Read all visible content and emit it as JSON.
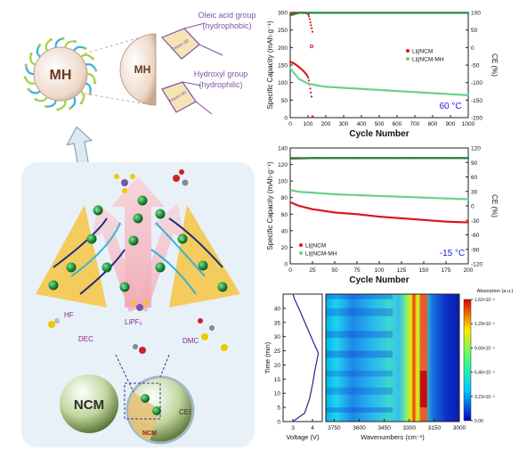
{
  "schematic": {
    "particle_label": "MH",
    "cap_label": "MH",
    "tween_label": "Tween 80",
    "oleic_label": "Oleic acid group",
    "oleic_sub": "(hydrophobic)",
    "hydroxyl_label": "Hydroxyl group",
    "hydroxyl_sub": "(hydrophilic)",
    "hf_label": "HF",
    "lipf6_label": "LiPF₆",
    "dec_label": "DEC",
    "dmc_label": "DMC",
    "ncm_label": "NCM",
    "ncm_small_label": "NCM",
    "cei_label": "CEI",
    "li_label": "Li"
  },
  "colors": {
    "li_ncm": "#d8191c",
    "li_ncm_mh": "#6ccf8a",
    "ce_line": "#1f8a3c",
    "arrow_pink": "#f2a7b3",
    "panel_bg": "#e8f1f8",
    "fan_yellow": "#f4c542",
    "li_ball": "#1e8f3e"
  },
  "chart_data": [
    {
      "type": "scatter",
      "title": "",
      "annotation": "60 °C",
      "xlabel": "Cycle Number",
      "ylabel": "Specific Capacity (mAh·g⁻¹)",
      "y2label": "CE (%)",
      "xlim": [
        0,
        1000
      ],
      "ylim": [
        0,
        300
      ],
      "y2lim": [
        -200,
        100
      ],
      "xticks": [
        0,
        100,
        200,
        300,
        400,
        500,
        600,
        700,
        800,
        900,
        1000
      ],
      "yticks": [
        0,
        50,
        100,
        150,
        200,
        250,
        300
      ],
      "y2ticks": [
        -200,
        -150,
        -100,
        -50,
        0,
        50,
        100
      ],
      "legend": "center-right",
      "series": [
        {
          "name": "Li||NCM",
          "kind": "capacity",
          "color": "#d8191c",
          "x": [
            1,
            5,
            10,
            20,
            30,
            40,
            50,
            60,
            70,
            80,
            90,
            100,
            105,
            110,
            115,
            120
          ],
          "y": [
            160,
            158,
            157,
            155,
            152,
            148,
            144,
            140,
            135,
            130,
            124,
            116,
            105,
            90,
            75,
            60
          ]
        },
        {
          "name": "Li||NCM",
          "kind": "ce",
          "color": "#d8191c",
          "x": [
            1,
            10,
            20,
            40,
            60,
            80,
            95,
            100,
            105,
            110,
            115,
            120,
            125
          ],
          "y": [
            95,
            99,
            99,
            99,
            99,
            99,
            98,
            96,
            90,
            80,
            68,
            58,
            45
          ]
        },
        {
          "name": "Li||NCM-MH",
          "kind": "capacity",
          "color": "#6ccf8a",
          "x": [
            1,
            25,
            50,
            100,
            150,
            200,
            300,
            400,
            500,
            600,
            700,
            800,
            900,
            1000
          ],
          "y": [
            140,
            125,
            110,
            97,
            92,
            88,
            85,
            82,
            79,
            76,
            73,
            70,
            67,
            64
          ]
        },
        {
          "name": "Li||NCM-MH",
          "kind": "ce",
          "color": "#1f8a3c",
          "x": [
            1,
            50,
            100,
            200,
            300,
            400,
            500,
            600,
            700,
            800,
            900,
            1000
          ],
          "y": [
            92,
            99,
            99,
            99,
            99,
            99,
            99,
            99,
            99,
            99,
            99,
            99
          ]
        }
      ]
    },
    {
      "type": "scatter",
      "title": "",
      "annotation": "-15 °C",
      "xlabel": "Cycle Number",
      "ylabel": "Specific Capacity (mAh·g⁻¹)",
      "y2label": "CE (%)",
      "xlim": [
        0,
        200
      ],
      "ylim": [
        0,
        140
      ],
      "y2lim": [
        -120,
        120
      ],
      "xticks": [
        0,
        25,
        50,
        75,
        100,
        125,
        150,
        175,
        200
      ],
      "yticks": [
        0,
        20,
        40,
        60,
        80,
        100,
        120,
        140
      ],
      "y2ticks": [
        -120,
        -90,
        -60,
        -30,
        0,
        30,
        60,
        90,
        120
      ],
      "legend": "bottom-left",
      "series": [
        {
          "name": "Li||NCM",
          "kind": "capacity",
          "color": "#d8191c",
          "x": [
            1,
            10,
            25,
            50,
            75,
            100,
            125,
            150,
            175,
            200
          ],
          "y": [
            74,
            70,
            66,
            62,
            60,
            57,
            55,
            53,
            51,
            50
          ]
        },
        {
          "name": "Li||NCM-MH",
          "kind": "capacity",
          "color": "#6ccf8a",
          "x": [
            1,
            10,
            25,
            50,
            75,
            100,
            125,
            150,
            175,
            200
          ],
          "y": [
            89,
            87,
            86,
            84,
            83,
            82,
            81,
            80,
            79,
            78
          ]
        },
        {
          "name": "Li||NCM",
          "kind": "ce",
          "color": "#d8191c",
          "x": [
            1,
            25,
            50,
            75,
            100,
            125,
            150,
            175,
            200
          ],
          "y": [
            98,
            99,
            99,
            99,
            99,
            99,
            99,
            99,
            99
          ]
        },
        {
          "name": "Li||NCM-MH",
          "kind": "ce",
          "color": "#1f8a3c",
          "x": [
            1,
            25,
            50,
            75,
            100,
            125,
            150,
            175,
            200
          ],
          "y": [
            99,
            99,
            99,
            99,
            99,
            99,
            99,
            99,
            99
          ]
        }
      ]
    },
    {
      "type": "line",
      "title": "",
      "xlabel": "Voltage (V)",
      "ylabel": "Time (min)",
      "xlim": [
        2.5,
        4.5
      ],
      "ylim": [
        0,
        45
      ],
      "xticks": [
        3,
        4
      ],
      "yticks": [
        0,
        5,
        10,
        15,
        20,
        25,
        30,
        35,
        40
      ],
      "series": [
        {
          "name": "",
          "x": [
            3.0,
            3.6,
            3.85,
            4.0,
            4.15,
            4.3,
            4.25,
            4.05,
            3.8,
            3.55,
            3.3,
            3.1,
            3.0
          ],
          "y": [
            0,
            3,
            8,
            13,
            19,
            24,
            25,
            28,
            32,
            36,
            40,
            43,
            45
          ]
        }
      ]
    },
    {
      "type": "heatmap",
      "title": "",
      "xlabel": "Wavenumbers (cm⁻¹)",
      "ylabel": "",
      "xlim": [
        3800,
        3000
      ],
      "ylim": [
        0,
        45
      ],
      "xticks": [
        3750,
        3600,
        3450,
        3300,
        3150,
        3000
      ],
      "colorbar_label": "Absorption (a.u.)",
      "colorbar_ticks": [
        "1.62×10⁻²",
        "1.29×10⁻²",
        "9.69×10⁻³",
        "6.46×10⁻³",
        "3.23×10⁻³",
        "0.00"
      ],
      "colorbar_max": 0.0162,
      "peak_center": 3215,
      "peak_intensity_by_time": [
        {
          "t": 0,
          "v": 0.7
        },
        {
          "t": 5,
          "v": 0.82
        },
        {
          "t": 12,
          "v": 0.95
        },
        {
          "t": 18,
          "v": 0.78
        },
        {
          "t": 25,
          "v": 0.72
        },
        {
          "t": 32,
          "v": 0.88
        },
        {
          "t": 40,
          "v": 0.8
        },
        {
          "t": 45,
          "v": 0.75
        }
      ]
    }
  ]
}
